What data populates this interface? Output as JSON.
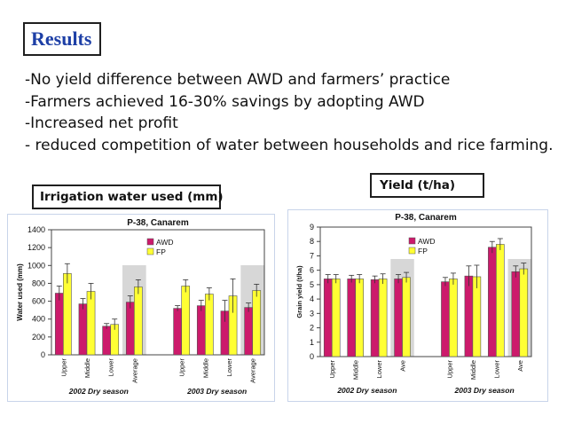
{
  "header": {
    "title": "Results"
  },
  "bullets": [
    "-No yield difference between AWD and farmers’ practice",
    "-Farmers achieved 16-30% savings by adopting AWD",
    "-Increased net profit",
    "- reduced competition of water between households and rice farming."
  ],
  "labels": {
    "irrigation": "Irrigation water used (mm)",
    "yield": "Yield (t/ha)"
  },
  "colors": {
    "awd": "#cc1a6b",
    "fp": "#ffff33",
    "highlight": "#d7d7d7",
    "frame": "#c8d4ea"
  },
  "chart_data": [
    {
      "type": "bar",
      "title": "P-38, Canarem",
      "ylabel": "Water used (mm)",
      "xlabel": "",
      "ylim": [
        0,
        1400
      ],
      "yticks": [
        0,
        200,
        400,
        600,
        800,
        1000,
        1200,
        1400
      ],
      "grid": false,
      "legend_position": "top-center",
      "groups": [
        {
          "name": "2002 Dry season",
          "categories": [
            "Upper",
            "Middle",
            "Lower",
            "Average"
          ]
        },
        {
          "name": "2003 Dry season",
          "categories": [
            "Upper",
            "Middle",
            "Lower",
            "Average"
          ]
        }
      ],
      "series": [
        {
          "name": "AWD",
          "values": [
            690,
            570,
            320,
            590,
            520,
            550,
            490,
            530
          ],
          "errors": [
            80,
            60,
            30,
            70,
            30,
            60,
            120,
            50
          ]
        },
        {
          "name": "FP",
          "values": [
            910,
            710,
            340,
            760,
            770,
            680,
            660,
            720
          ],
          "errors": [
            110,
            90,
            60,
            80,
            70,
            70,
            190,
            70
          ]
        }
      ],
      "highlighted_categories": [
        "Average"
      ]
    },
    {
      "type": "bar",
      "title": "P-38, Canarem",
      "ylabel": "Grain yield (t/ha)",
      "xlabel": "",
      "ylim": [
        0,
        9
      ],
      "yticks": [
        0,
        1,
        2,
        3,
        4,
        5,
        6,
        7,
        8,
        9
      ],
      "grid": false,
      "legend_position": "top-center",
      "groups": [
        {
          "name": "2002 Dry season",
          "categories": [
            "Upper",
            "Middle",
            "Lower",
            "Ave"
          ]
        },
        {
          "name": "2003 Dry season",
          "categories": [
            "Upper",
            "Middle",
            "Lower",
            "Ave"
          ]
        }
      ],
      "series": [
        {
          "name": "AWD",
          "values": [
            5.4,
            5.4,
            5.35,
            5.4,
            5.2,
            5.6,
            7.6,
            5.9
          ],
          "errors": [
            0.3,
            0.25,
            0.25,
            0.3,
            0.3,
            0.7,
            0.4,
            0.4
          ]
        },
        {
          "name": "FP",
          "values": [
            5.4,
            5.4,
            5.4,
            5.5,
            5.4,
            5.55,
            7.8,
            6.1
          ],
          "errors": [
            0.3,
            0.3,
            0.35,
            0.35,
            0.4,
            0.8,
            0.4,
            0.4
          ]
        }
      ],
      "highlighted_categories": [
        "Ave"
      ]
    }
  ]
}
